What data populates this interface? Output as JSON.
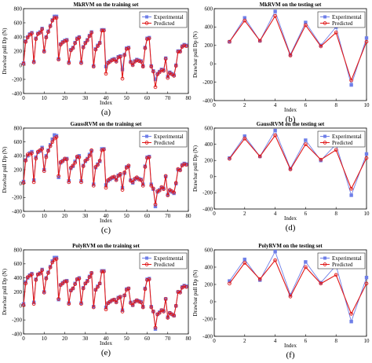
{
  "colors": {
    "experimental": "#6f7fe8",
    "predicted": "#e01818"
  },
  "chart_data": [
    {
      "type": "line",
      "title": "MkRVM on the training set",
      "xlabel": "Index",
      "ylabel": "Drawbar pull Dp (N)",
      "xlim": [
        0,
        80
      ],
      "ylim": [
        -400,
        800
      ],
      "xticks": [
        "0",
        "10",
        "20",
        "30",
        "40",
        "50",
        "60",
        "70",
        "80"
      ],
      "yticks": [
        "-400",
        "-200",
        "0",
        "200",
        "400",
        "600",
        "800"
      ],
      "panel_label": "(a)",
      "legend": "top-right",
      "series": [
        {
          "name": "Experimental",
          "values": [
            30,
            340,
            400,
            440,
            460,
            50,
            380,
            450,
            470,
            520,
            200,
            400,
            480,
            560,
            640,
            690,
            690,
            90,
            300,
            330,
            350,
            360,
            40,
            220,
            250,
            320,
            380,
            400,
            40,
            260,
            320,
            360,
            420,
            470,
            -10,
            230,
            280,
            320,
            500,
            500,
            -20,
            40,
            60,
            80,
            90,
            60,
            120,
            130,
            -60,
            150,
            240,
            250,
            50,
            10,
            60,
            80,
            70,
            60,
            -10,
            250,
            380,
            390,
            -10,
            -80,
            -200,
            -120,
            -90,
            -60,
            -70,
            100,
            -160,
            -100,
            -120,
            -140,
            0,
            200,
            200,
            270,
            290,
            280
          ]
        },
        {
          "name": "Predicted",
          "values": [
            20,
            330,
            390,
            430,
            450,
            40,
            370,
            440,
            460,
            510,
            190,
            390,
            470,
            550,
            630,
            670,
            670,
            80,
            290,
            320,
            340,
            350,
            30,
            210,
            240,
            310,
            370,
            390,
            30,
            250,
            310,
            350,
            410,
            460,
            -20,
            220,
            270,
            310,
            490,
            490,
            -120,
            30,
            50,
            70,
            80,
            50,
            110,
            120,
            -190,
            140,
            230,
            240,
            40,
            0,
            50,
            70,
            60,
            50,
            -20,
            240,
            370,
            380,
            -20,
            -90,
            -310,
            -130,
            -100,
            -70,
            -80,
            90,
            -180,
            -110,
            -130,
            -150,
            -10,
            190,
            190,
            260,
            280,
            270
          ]
        }
      ]
    },
    {
      "type": "line",
      "title": "MkRVM on the testing set",
      "xlabel": "Index",
      "ylabel": "Drawbar pull Dp (N)",
      "xlim": [
        0,
        10
      ],
      "ylim": [
        -400,
        600
      ],
      "xticks": [
        "0",
        "2",
        "4",
        "6",
        "8",
        "10"
      ],
      "yticks": [
        "-400",
        "-200",
        "0",
        "200",
        "400",
        "600"
      ],
      "panel_label": "(b)",
      "legend": "top-right",
      "series": [
        {
          "name": "Experimental",
          "x": [
            1,
            2,
            3,
            4,
            5,
            6,
            7,
            8,
            9,
            10
          ],
          "values": [
            240,
            500,
            250,
            570,
            100,
            450,
            200,
            400,
            -230,
            280
          ]
        },
        {
          "name": "Predicted",
          "x": [
            1,
            2,
            3,
            4,
            5,
            6,
            7,
            8,
            9,
            10
          ],
          "values": [
            240,
            470,
            250,
            520,
            90,
            420,
            190,
            340,
            -180,
            240
          ]
        }
      ]
    },
    {
      "type": "line",
      "title": "GaussRVM on the training set",
      "xlabel": "Index",
      "ylabel": "Drawbar pull Dp (N)",
      "xlim": [
        0,
        80
      ],
      "ylim": [
        -400,
        800
      ],
      "xticks": [
        "0",
        "10",
        "20",
        "30",
        "40",
        "50",
        "60",
        "70",
        "80"
      ],
      "yticks": [
        "-400",
        "-200",
        "0",
        "200",
        "400",
        "600",
        "800"
      ],
      "panel_label": "(c)",
      "legend": "top-right",
      "series": [
        {
          "name": "Experimental",
          "values": [
            30,
            340,
            400,
            440,
            460,
            50,
            380,
            450,
            470,
            520,
            200,
            400,
            480,
            560,
            640,
            700,
            690,
            90,
            300,
            330,
            350,
            360,
            40,
            220,
            250,
            320,
            380,
            400,
            40,
            260,
            320,
            360,
            420,
            470,
            -10,
            230,
            280,
            320,
            500,
            500,
            -20,
            40,
            60,
            80,
            90,
            60,
            120,
            130,
            -60,
            150,
            240,
            250,
            50,
            10,
            60,
            80,
            70,
            60,
            -10,
            250,
            380,
            390,
            -10,
            -80,
            -330,
            -120,
            -90,
            -60,
            -70,
            100,
            -160,
            -100,
            -120,
            -140,
            0,
            200,
            200,
            270,
            290,
            280
          ]
        },
        {
          "name": "Predicted",
          "values": [
            10,
            330,
            420,
            420,
            440,
            20,
            360,
            460,
            480,
            500,
            180,
            380,
            470,
            540,
            600,
            650,
            670,
            110,
            310,
            320,
            360,
            350,
            20,
            230,
            260,
            300,
            390,
            380,
            20,
            250,
            330,
            350,
            400,
            480,
            -30,
            240,
            270,
            330,
            480,
            490,
            -60,
            50,
            70,
            90,
            100,
            50,
            110,
            140,
            -90,
            160,
            230,
            260,
            40,
            20,
            70,
            90,
            60,
            50,
            -30,
            240,
            370,
            380,
            -30,
            -70,
            -300,
            -110,
            -100,
            -50,
            -80,
            110,
            -170,
            -90,
            -110,
            -130,
            10,
            210,
            190,
            260,
            280,
            270
          ]
        }
      ]
    },
    {
      "type": "line",
      "title": "GaussRVM on the testing set",
      "xlabel": "Index",
      "ylabel": "Drawbar pull Dp (N)",
      "xlim": [
        0,
        10
      ],
      "ylim": [
        -400,
        600
      ],
      "xticks": [
        "0",
        "2",
        "4",
        "6",
        "8",
        "10"
      ],
      "yticks": [
        "-400",
        "-200",
        "0",
        "200",
        "400",
        "600"
      ],
      "panel_label": "(d)",
      "legend": "top-right",
      "series": [
        {
          "name": "Experimental",
          "x": [
            1,
            2,
            3,
            4,
            5,
            6,
            7,
            8,
            9,
            10
          ],
          "values": [
            230,
            500,
            250,
            570,
            100,
            450,
            200,
            400,
            -230,
            280
          ]
        },
        {
          "name": "Predicted",
          "x": [
            1,
            2,
            3,
            4,
            5,
            6,
            7,
            8,
            9,
            10
          ],
          "values": [
            220,
            470,
            250,
            510,
            90,
            400,
            210,
            330,
            -150,
            230
          ]
        }
      ]
    },
    {
      "type": "line",
      "title": "PolyRVM on the training set",
      "xlabel": "Index",
      "ylabel": "Drawbar pull Dp (N)",
      "xlim": [
        0,
        80
      ],
      "ylim": [
        -400,
        800
      ],
      "xticks": [
        "0",
        "10",
        "20",
        "30",
        "40",
        "50",
        "60",
        "70",
        "80"
      ],
      "yticks": [
        "-400",
        "-200",
        "0",
        "200",
        "400",
        "600",
        "800"
      ],
      "panel_label": "(e)",
      "legend": "top-right",
      "series": [
        {
          "name": "Experimental",
          "values": [
            30,
            340,
            400,
            440,
            460,
            50,
            380,
            450,
            470,
            520,
            200,
            400,
            480,
            560,
            640,
            690,
            690,
            90,
            300,
            330,
            350,
            360,
            40,
            220,
            250,
            320,
            380,
            400,
            40,
            260,
            320,
            360,
            420,
            470,
            -10,
            230,
            280,
            320,
            500,
            500,
            -20,
            40,
            60,
            80,
            90,
            60,
            120,
            130,
            -60,
            150,
            240,
            250,
            50,
            10,
            60,
            80,
            70,
            60,
            -10,
            250,
            380,
            390,
            -10,
            -80,
            -330,
            -120,
            -90,
            -60,
            -70,
            100,
            -160,
            -100,
            -120,
            -140,
            0,
            200,
            200,
            270,
            290,
            280
          ]
        },
        {
          "name": "Predicted",
          "values": [
            10,
            320,
            410,
            430,
            450,
            30,
            370,
            450,
            460,
            510,
            190,
            390,
            470,
            550,
            620,
            660,
            670,
            100,
            300,
            320,
            350,
            350,
            30,
            220,
            250,
            310,
            380,
            390,
            30,
            250,
            320,
            350,
            410,
            470,
            -20,
            230,
            270,
            320,
            490,
            490,
            -50,
            40,
            60,
            80,
            90,
            50,
            110,
            130,
            -80,
            150,
            230,
            250,
            40,
            10,
            60,
            80,
            60,
            50,
            -20,
            240,
            370,
            380,
            -20,
            -80,
            -310,
            -120,
            -100,
            -60,
            -80,
            100,
            -170,
            -100,
            -120,
            -140,
            0,
            200,
            190,
            260,
            280,
            270
          ]
        }
      ]
    },
    {
      "type": "line",
      "title": "PolyRVM on the testing set",
      "xlabel": "Index",
      "ylabel": "Drawbar pull Dp (N)",
      "xlim": [
        0,
        10
      ],
      "ylim": [
        -400,
        600
      ],
      "xticks": [
        "0",
        "2",
        "4",
        "6",
        "8",
        "10"
      ],
      "yticks": [
        "-400",
        "-200",
        "0",
        "200",
        "400",
        "600"
      ],
      "panel_label": "(f)",
      "legend": "top-right",
      "series": [
        {
          "name": "Experimental",
          "x": [
            1,
            2,
            3,
            4,
            5,
            6,
            7,
            8,
            9,
            10
          ],
          "values": [
            240,
            490,
            250,
            580,
            80,
            460,
            220,
            420,
            -230,
            280
          ]
        },
        {
          "name": "Predicted",
          "x": [
            1,
            2,
            3,
            4,
            5,
            6,
            7,
            8,
            9,
            10
          ],
          "values": [
            210,
            450,
            260,
            480,
            60,
            400,
            210,
            310,
            -140,
            210
          ]
        }
      ]
    }
  ]
}
